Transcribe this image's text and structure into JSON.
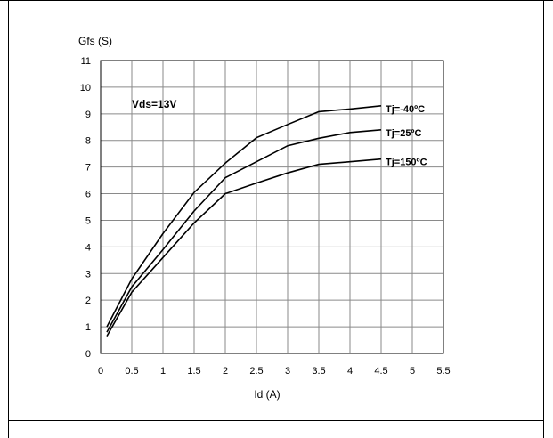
{
  "chart_data": {
    "type": "line",
    "ylabel": "Gfs (S)",
    "xlabel": "Id (A)",
    "annotation": "Vds=13V",
    "xlim": [
      0,
      5.5
    ],
    "ylim": [
      0,
      11
    ],
    "x_ticks": [
      "0",
      "0.5",
      "1",
      "1.5",
      "2",
      "2.5",
      "3",
      "3.5",
      "4",
      "4.5",
      "5",
      "5.5"
    ],
    "y_ticks": [
      "0",
      "1",
      "2",
      "3",
      "4",
      "5",
      "6",
      "7",
      "8",
      "9",
      "10",
      "11"
    ],
    "grid": true,
    "series": [
      {
        "name": "Tj=-40ºC",
        "x": [
          0.1,
          0.5,
          1.0,
          1.5,
          2.0,
          2.5,
          3.0,
          3.5,
          4.0,
          4.5
        ],
        "y": [
          1.0,
          2.8,
          4.5,
          6.05,
          7.15,
          8.1,
          8.6,
          9.08,
          9.18,
          9.3
        ]
      },
      {
        "name": "Tj=25ºC",
        "x": [
          0.1,
          0.5,
          1.0,
          1.5,
          2.0,
          2.5,
          3.0,
          3.5,
          4.0,
          4.5
        ],
        "y": [
          0.8,
          2.5,
          3.9,
          5.35,
          6.6,
          7.2,
          7.8,
          8.08,
          8.3,
          8.4
        ]
      },
      {
        "name": "Tj=150ºC",
        "x": [
          0.1,
          0.5,
          1.0,
          1.5,
          2.0,
          2.5,
          3.0,
          3.5,
          4.0,
          4.5
        ],
        "y": [
          0.65,
          2.3,
          3.6,
          4.9,
          6.0,
          6.4,
          6.78,
          7.1,
          7.2,
          7.3
        ]
      }
    ]
  }
}
